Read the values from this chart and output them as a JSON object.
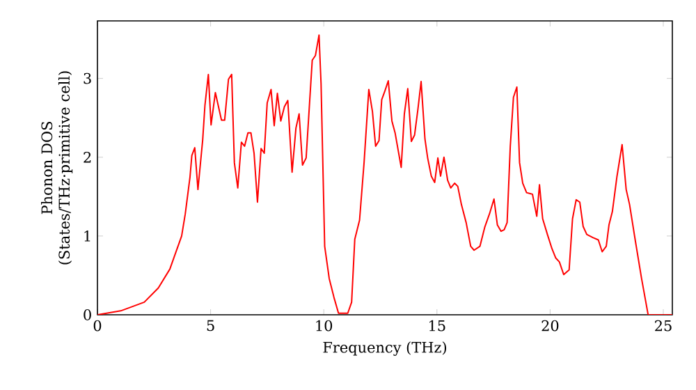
{
  "chart_data": {
    "type": "line",
    "xlabel": "Frequency (THz)",
    "ylabel": "Phonon DOS (States/THz·primitive cell)",
    "xlim": [
      0,
      25.4
    ],
    "ylim": [
      0,
      3.73
    ],
    "xticks": [
      0,
      5,
      10,
      15,
      20,
      25
    ],
    "yticks": [
      0,
      1,
      2,
      3
    ],
    "marker": "none",
    "line_style": "solid",
    "series": [
      {
        "color": "#ff0000",
        "x": [
          0,
          1.03,
          2.07,
          2.69,
          3.2,
          3.72,
          3.88,
          4.09,
          4.17,
          4.3,
          4.44,
          4.65,
          4.75,
          4.9,
          5.02,
          5.21,
          5.48,
          5.62,
          5.79,
          5.93,
          6.05,
          6.2,
          6.36,
          6.5,
          6.65,
          6.78,
          6.92,
          7.07,
          7.23,
          7.37,
          7.5,
          7.67,
          7.81,
          7.95,
          8.1,
          8.26,
          8.41,
          8.6,
          8.77,
          8.91,
          9.06,
          9.22,
          9.49,
          9.63,
          9.79,
          9.88,
          10.04,
          10.24,
          10.45,
          10.65,
          11.06,
          11.23,
          11.37,
          11.58,
          11.78,
          11.99,
          12.15,
          12.29,
          12.44,
          12.56,
          12.7,
          12.85,
          13.01,
          13.15,
          13.42,
          13.56,
          13.71,
          13.87,
          14.01,
          14.16,
          14.3,
          14.47,
          14.59,
          14.75,
          14.9,
          15.04,
          15.16,
          15.31,
          15.47,
          15.61,
          15.78,
          15.92,
          16.08,
          16.29,
          16.49,
          16.64,
          16.9,
          17.11,
          17.32,
          17.52,
          17.67,
          17.83,
          17.97,
          18.1,
          18.24,
          18.38,
          18.53,
          18.65,
          18.79,
          18.96,
          19.22,
          19.41,
          19.53,
          19.67,
          19.88,
          20.08,
          20.25,
          20.41,
          20.6,
          20.84,
          20.99,
          21.15,
          21.31,
          21.46,
          21.62,
          21.89,
          22.13,
          22.3,
          22.48,
          22.6,
          22.75,
          22.95,
          23.18,
          23.36,
          23.51,
          23.77,
          24.04,
          24.33,
          25.4
        ],
        "values": [
          0,
          0.05,
          0.16,
          0.34,
          0.58,
          1.0,
          1.28,
          1.75,
          2.02,
          2.12,
          1.59,
          2.22,
          2.66,
          3.05,
          2.41,
          2.82,
          2.47,
          2.47,
          2.99,
          3.05,
          1.93,
          1.61,
          2.19,
          2.14,
          2.31,
          2.31,
          2.05,
          1.43,
          2.11,
          2.05,
          2.69,
          2.86,
          2.4,
          2.81,
          2.46,
          2.64,
          2.72,
          1.81,
          2.37,
          2.55,
          1.9,
          1.99,
          3.23,
          3.29,
          3.55,
          2.93,
          0.87,
          0.46,
          0.22,
          0.02,
          0.02,
          0.16,
          0.96,
          1.2,
          1.93,
          2.86,
          2.58,
          2.14,
          2.21,
          2.73,
          2.84,
          2.97,
          2.46,
          2.31,
          1.87,
          2.55,
          2.87,
          2.2,
          2.28,
          2.61,
          2.96,
          2.23,
          1.99,
          1.76,
          1.68,
          1.99,
          1.76,
          2.0,
          1.71,
          1.61,
          1.67,
          1.63,
          1.4,
          1.17,
          0.87,
          0.82,
          0.87,
          1.11,
          1.28,
          1.47,
          1.14,
          1.06,
          1.08,
          1.17,
          2.14,
          2.76,
          2.89,
          1.93,
          1.67,
          1.55,
          1.53,
          1.25,
          1.65,
          1.22,
          1.02,
          0.84,
          0.72,
          0.67,
          0.51,
          0.57,
          1.22,
          1.46,
          1.43,
          1.12,
          1.02,
          0.98,
          0.95,
          0.8,
          0.87,
          1.14,
          1.31,
          1.75,
          2.16,
          1.59,
          1.4,
          0.93,
          0.46,
          0,
          0
        ]
      }
    ]
  }
}
